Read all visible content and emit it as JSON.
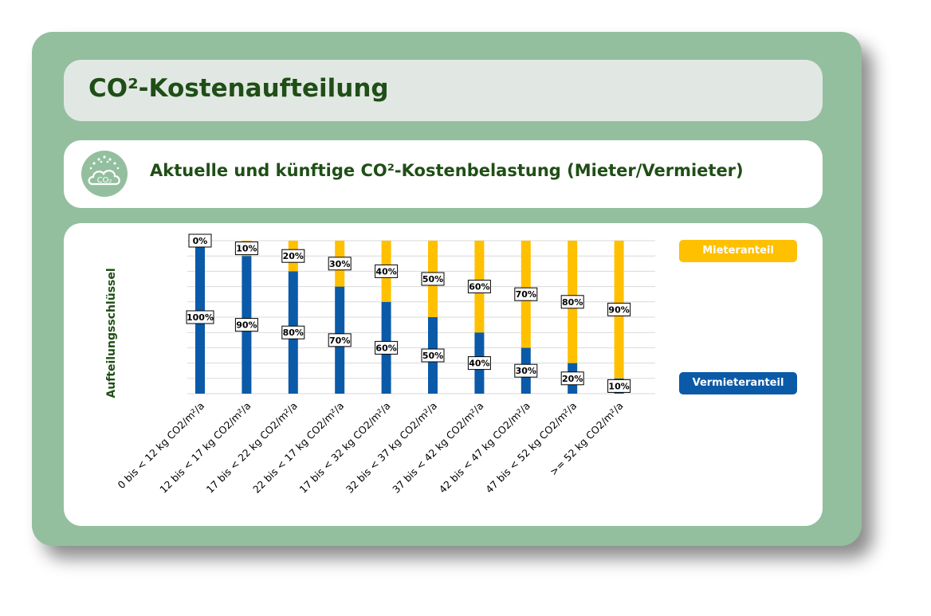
{
  "header": {
    "title": "CO²-Kostenaufteilung"
  },
  "subheader": {
    "title": "Aktuelle und künftige CO²-Kostenbelastung (Mieter/Vermieter)",
    "icon": "co2-cloud-icon",
    "icon_text": "CO₂"
  },
  "colors": {
    "mieter": "#ffc000",
    "vermieter": "#0a5aa8",
    "accent": "#1f4e16",
    "card": "#93bf9f"
  },
  "chart_data": {
    "type": "bar",
    "stacked": true,
    "ylabel": "Aufteilungsschlüssel",
    "ylim": [
      0,
      100
    ],
    "grid": true,
    "legend_placement": "right",
    "categories": [
      "0 bis < 12 kg CO2/m²/a",
      "12 bis < 17 kg CO2/m²/a",
      "17 bis < 22 kg CO2/m²/a",
      "22 bis < 17 kg CO2/m²/a",
      "17 bis < 32 kg CO2/m²/a",
      "32 bis < 37 kg CO2/m²/a",
      "37 bis < 42 kg CO2/m²/a",
      "42 bis < 47 kg CO2/m²/a",
      "47 bis < 52 kg CO2/m²/a",
      ">= 52 kg CO2/m²/a"
    ],
    "series": [
      {
        "name": "Vermieteranteil",
        "values": [
          100,
          90,
          80,
          70,
          60,
          50,
          40,
          30,
          20,
          10
        ],
        "labels": [
          "100%",
          "90%",
          "80%",
          "70%",
          "60%",
          "50%",
          "40%",
          "30%",
          "20%",
          "10%"
        ]
      },
      {
        "name": "Mieteranteil",
        "values": [
          0,
          10,
          20,
          30,
          40,
          50,
          60,
          70,
          80,
          90
        ],
        "labels": [
          "0%",
          "10%",
          "20%",
          "30%",
          "40%",
          "50%",
          "60%",
          "70%",
          "80%",
          "90%"
        ]
      }
    ]
  }
}
